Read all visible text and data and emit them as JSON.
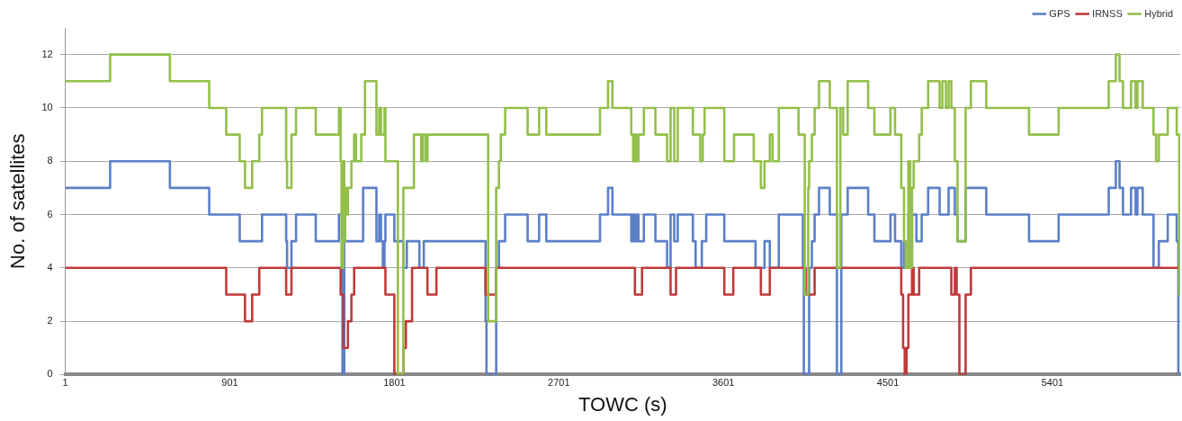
{
  "chart_data": {
    "type": "step",
    "xlabel": "TOWC (s)",
    "ylabel": "No. of satellites",
    "xlim": [
      1,
      6100
    ],
    "xticks": [
      1,
      901,
      1801,
      2701,
      3601,
      4501,
      5401
    ],
    "ylim": [
      0,
      13
    ],
    "yticks": [
      0,
      2,
      4,
      6,
      8,
      10,
      12
    ],
    "grid": "y",
    "legend": "top right",
    "marker": "none",
    "line_style": "solid",
    "series": [
      {
        "name": "GPS",
        "color": "#5b7fc8",
        "x": [
          1,
          246,
          573,
          788,
          955,
          1077,
          1209,
          1214,
          1238,
          1263,
          1371,
          1498,
          1517,
          1527,
          1630,
          1703,
          1718,
          1728,
          1738,
          1747,
          1752,
          1801,
          1850,
          1869,
          1938,
          1962,
          2300,
          2305,
          2358,
          2373,
          2407,
          2530,
          2593,
          2632,
          2926,
          2970,
          2994,
          3097,
          3107,
          3117,
          3126,
          3136,
          3166,
          3229,
          3293,
          3312,
          3332,
          3351,
          3434,
          3449,
          3483,
          3507,
          3606,
          3777,
          3826,
          3855,
          3904,
          4036,
          4041,
          4070,
          4085,
          4100,
          4124,
          4183,
          4222,
          4246,
          4281,
          4393,
          4427,
          4515,
          4540,
          4574,
          4589,
          4598,
          4613,
          4623,
          4633,
          4657,
          4686,
          4721,
          4784,
          4833,
          4867,
          4882,
          4926,
          5039,
          5273,
          5435,
          5709,
          5748,
          5768,
          5787,
          5831,
          5856,
          5866,
          5895,
          5954,
          5983,
          6032,
          6081,
          6090,
          6100
        ],
        "values": [
          7,
          8,
          7,
          6,
          5,
          6,
          5,
          4,
          5,
          6,
          5,
          6,
          0,
          5,
          7,
          5,
          6,
          5,
          4,
          5,
          6,
          5,
          4,
          5,
          4,
          5,
          2,
          0,
          4,
          5,
          6,
          5,
          6,
          5,
          6,
          7,
          6,
          5,
          6,
          5,
          6,
          5,
          6,
          5,
          4,
          6,
          5,
          6,
          5,
          4,
          5,
          6,
          5,
          4,
          5,
          4,
          6,
          4,
          0,
          4,
          5,
          6,
          7,
          6,
          0,
          6,
          7,
          6,
          5,
          6,
          5,
          4,
          5,
          4,
          6,
          4,
          6,
          5,
          6,
          7,
          6,
          7,
          6,
          5,
          7,
          6,
          5,
          6,
          7,
          8,
          7,
          6,
          7,
          6,
          7,
          6,
          4,
          5,
          6,
          5,
          0,
          0
        ]
      },
      {
        "name": "IRNSS",
        "color": "#c0393a",
        "x": [
          1,
          881,
          984,
          1023,
          1062,
          1209,
          1238,
          1507,
          1522,
          1547,
          1566,
          1581,
          1752,
          1801,
          1850,
          1864,
          1898,
          1982,
          2031,
          2300,
          2358,
          3117,
          3156,
          3312,
          3342,
          3606,
          3655,
          3806,
          3855,
          4051,
          4100,
          4574,
          4584,
          4593,
          4603,
          4613,
          4633,
          4642,
          4672,
          4848,
          4867,
          4877,
          4892,
          4926,
          4955,
          6100
        ],
        "values": [
          4,
          3,
          2,
          3,
          4,
          3,
          4,
          3,
          1,
          2,
          3,
          4,
          3,
          0,
          1,
          2,
          4,
          3,
          4,
          3,
          4,
          3,
          4,
          3,
          4,
          3,
          4,
          3,
          4,
          3,
          4,
          3,
          1,
          0,
          1,
          3,
          4,
          3,
          4,
          3,
          4,
          3,
          0,
          3,
          4,
          4
        ]
      },
      {
        "name": "Hybrid",
        "color": "#93bf4a",
        "x": [
          1,
          246,
          573,
          788,
          881,
          955,
          984,
          1023,
          1062,
          1077,
          1209,
          1214,
          1238,
          1263,
          1371,
          1498,
          1507,
          1512,
          1522,
          1527,
          1532,
          1542,
          1547,
          1566,
          1581,
          1591,
          1620,
          1640,
          1703,
          1718,
          1728,
          1747,
          1752,
          1820,
          1850,
          1908,
          1948,
          1957,
          1972,
          1982,
          2314,
          2358,
          2373,
          2383,
          2407,
          2530,
          2593,
          2632,
          2926,
          2970,
          2994,
          3097,
          3107,
          3117,
          3126,
          3136,
          3166,
          3229,
          3293,
          3312,
          3332,
          3351,
          3434,
          3474,
          3488,
          3498,
          3606,
          3659,
          3767,
          3806,
          3826,
          3855,
          3870,
          3904,
          4012,
          4046,
          4065,
          4070,
          4085,
          4100,
          4124,
          4183,
          4222,
          4241,
          4256,
          4281,
          4393,
          4427,
          4515,
          4540,
          4574,
          4589,
          4598,
          4613,
          4623,
          4633,
          4642,
          4672,
          4686,
          4721,
          4784,
          4799,
          4818,
          4833,
          4848,
          4867,
          4882,
          4926,
          4955,
          5039,
          5273,
          5435,
          5709,
          5748,
          5768,
          5787,
          5831,
          5856,
          5866,
          5895,
          5954,
          5968,
          5983,
          6032,
          6081,
          6095,
          6100
        ],
        "values": [
          11,
          12,
          11,
          10,
          9,
          8,
          7,
          8,
          9,
          10,
          8,
          7,
          9,
          10,
          9,
          10,
          8,
          4,
          8,
          5,
          7,
          6,
          7,
          8,
          9,
          8,
          9,
          11,
          9,
          10,
          9,
          10,
          8,
          0,
          7,
          9,
          8,
          9,
          8,
          9,
          2,
          7,
          8,
          9,
          10,
          9,
          10,
          9,
          10,
          11,
          10,
          9,
          8,
          9,
          8,
          9,
          10,
          9,
          8,
          10,
          8,
          10,
          9,
          8,
          9,
          10,
          8,
          9,
          8,
          7,
          8,
          9,
          8,
          10,
          9,
          3,
          7,
          8,
          9,
          10,
          11,
          10,
          4,
          10,
          9,
          11,
          10,
          9,
          10,
          9,
          7,
          5,
          4,
          8,
          4,
          7,
          8,
          9,
          10,
          11,
          10,
          11,
          10,
          11,
          10,
          8,
          5,
          10,
          11,
          10,
          9,
          10,
          11,
          12,
          11,
          10,
          11,
          10,
          11,
          10,
          9,
          8,
          9,
          10,
          9,
          3,
          3
        ]
      }
    ]
  }
}
